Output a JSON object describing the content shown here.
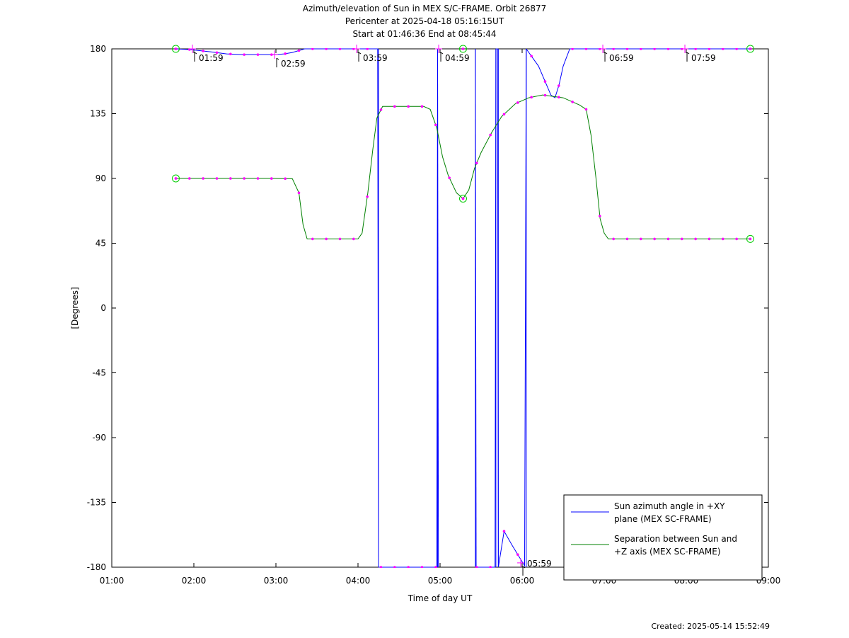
{
  "titles": {
    "line1": "Azimuth/elevation of Sun in MEX S/C-FRAME.  Orbit 26877",
    "line2": "Pericenter at 2025-04-18 05:16:15UT",
    "line3": "Start at 01:46:36 End at 08:45:44"
  },
  "footer": {
    "created": "Created: 2025-05-14 15:52:49"
  },
  "colors": {
    "azimuth": "#0000ff",
    "separation": "#008000",
    "markers": "#ff00ff",
    "endpoints": "#00cc00"
  },
  "chart_data": {
    "type": "line",
    "xlabel": "Time of day UT",
    "ylabel": "[Degrees]",
    "xlim": [
      1.0,
      9.0
    ],
    "ylim": [
      -180,
      180
    ],
    "x_ticks": [
      1,
      2,
      3,
      4,
      5,
      6,
      7,
      8,
      9
    ],
    "x_tick_labels": [
      "01:00",
      "02:00",
      "03:00",
      "04:00",
      "05:00",
      "06:00",
      "07:00",
      "08:00",
      "09:00"
    ],
    "y_ticks": [
      180,
      135,
      90,
      45,
      0,
      -45,
      -90,
      -135,
      -180
    ],
    "y_tick_labels": [
      "180",
      "135",
      "90",
      "45",
      "0",
      "-45",
      "-90",
      "-135",
      "-180"
    ],
    "hour_markers": [
      {
        "x": 1.983,
        "y": 180,
        "label": "01:59"
      },
      {
        "x": 2.983,
        "y": 176,
        "label": "02:59"
      },
      {
        "x": 3.983,
        "y": 180,
        "label": "03:59"
      },
      {
        "x": 4.983,
        "y": 180,
        "label": "04:59"
      },
      {
        "x": 5.983,
        "y": -177,
        "label": "05:59"
      },
      {
        "x": 6.983,
        "y": 180,
        "label": "06:59"
      },
      {
        "x": 7.983,
        "y": 180,
        "label": "07:59"
      }
    ],
    "series": [
      {
        "name": "Sun azimuth angle in +XY plane (MEX SC-FRAME)",
        "color": "#0000ff",
        "segments": [
          [
            [
              1.78,
              180
            ],
            [
              1.95,
              179.5
            ],
            [
              2.2,
              178
            ],
            [
              2.4,
              176.5
            ],
            [
              2.6,
              176
            ],
            [
              2.8,
              176
            ],
            [
              3.0,
              176
            ],
            [
              3.1,
              176.5
            ],
            [
              3.2,
              177.5
            ],
            [
              3.35,
              180
            ],
            [
              3.6,
              180
            ],
            [
              4.0,
              180
            ],
            [
              4.24,
              180
            ],
            [
              4.25,
              -180
            ]
          ],
          [
            [
              4.25,
              -180
            ],
            [
              4.6,
              -180
            ],
            [
              4.96,
              -180
            ],
            [
              4.97,
              180
            ]
          ],
          [
            [
              4.97,
              180
            ],
            [
              4.98,
              -180
            ]
          ],
          [
            [
              4.98,
              -180
            ]
          ],
          [
            [
              5.43,
              180
            ],
            [
              5.44,
              -180
            ]
          ],
          [
            [
              5.44,
              -180
            ],
            [
              5.67,
              -180
            ],
            [
              5.68,
              180
            ]
          ],
          [
            [
              5.68,
              180
            ],
            [
              5.7,
              180
            ],
            [
              5.71,
              -180
            ]
          ],
          [
            [
              5.71,
              -180
            ],
            [
              5.78,
              -155
            ],
            [
              5.88,
              -165
            ],
            [
              6.03,
              -179
            ],
            [
              6.05,
              180
            ]
          ],
          [
            [
              6.05,
              180
            ],
            [
              6.2,
              168
            ],
            [
              6.35,
              148
            ],
            [
              6.4,
              146
            ],
            [
              6.45,
              155
            ],
            [
              6.5,
              168
            ],
            [
              6.58,
              180
            ],
            [
              7.0,
              180
            ],
            [
              7.5,
              180
            ],
            [
              8.0,
              180
            ],
            [
              8.78,
              180
            ]
          ]
        ],
        "verticals_x": [
          4.25,
          4.97,
          5.43,
          5.68,
          5.71,
          6.05
        ]
      },
      {
        "name": "Separation between Sun and +Z axis (MEX SC-FRAME)",
        "color": "#008000",
        "points": [
          [
            1.78,
            90
          ],
          [
            2.0,
            90
          ],
          [
            2.3,
            90
          ],
          [
            2.6,
            90
          ],
          [
            2.9,
            90
          ],
          [
            3.2,
            89.8
          ],
          [
            3.28,
            80
          ],
          [
            3.33,
            58
          ],
          [
            3.38,
            48
          ],
          [
            3.6,
            48
          ],
          [
            4.0,
            48
          ],
          [
            4.05,
            52
          ],
          [
            4.12,
            80
          ],
          [
            4.18,
            110
          ],
          [
            4.23,
            132
          ],
          [
            4.3,
            140
          ],
          [
            4.5,
            140
          ],
          [
            4.8,
            140
          ],
          [
            4.88,
            138
          ],
          [
            4.96,
            125
          ],
          [
            5.03,
            105
          ],
          [
            5.1,
            92
          ],
          [
            5.2,
            80
          ],
          [
            5.28,
            76
          ],
          [
            5.35,
            82
          ],
          [
            5.42,
            97
          ],
          [
            5.5,
            108
          ],
          [
            5.63,
            122
          ],
          [
            5.75,
            133
          ],
          [
            5.92,
            142
          ],
          [
            6.08,
            146
          ],
          [
            6.25,
            148
          ],
          [
            6.5,
            146
          ],
          [
            6.7,
            141
          ],
          [
            6.78,
            138
          ],
          [
            6.84,
            120
          ],
          [
            6.9,
            90
          ],
          [
            6.95,
            62
          ],
          [
            7.0,
            52
          ],
          [
            7.05,
            48
          ],
          [
            7.5,
            48
          ],
          [
            8.0,
            48
          ],
          [
            8.78,
            48
          ]
        ]
      }
    ],
    "endpoint_circles": [
      [
        1.78,
        180
      ],
      [
        1.78,
        90
      ],
      [
        5.28,
        180
      ],
      [
        5.28,
        76
      ],
      [
        8.78,
        180
      ],
      [
        8.78,
        48
      ]
    ],
    "legend": {
      "placement": "lower-right",
      "entries": [
        {
          "line1": "Sun azimuth angle in +XY",
          "line2": "plane (MEX SC-FRAME)",
          "color": "#0000ff"
        },
        {
          "line1": "Separation between Sun and",
          "line2": "+Z axis (MEX SC-FRAME)",
          "color": "#008000"
        }
      ]
    },
    "grid": false
  }
}
